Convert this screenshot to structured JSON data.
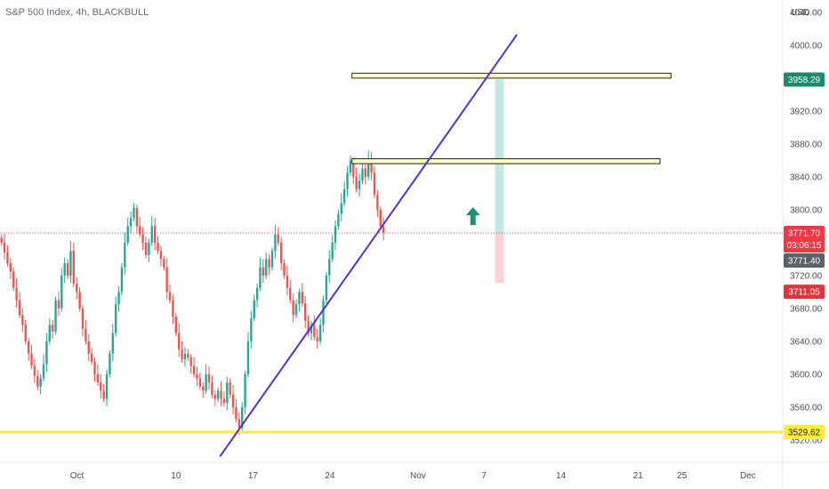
{
  "header": {
    "title": "S&P 500 Index, 4h, BLACKBULL",
    "currency": "USD"
  },
  "colors": {
    "up": "#26a69a",
    "down": "#ef5350",
    "trendline": "#5b2fc9",
    "zone_fill": "#fff9c4",
    "zone_stroke": "#222222",
    "support": "#ffeb3b",
    "target_fill": "#b2dfdb",
    "stop_fill": "#f8c4c8",
    "arrow": "#1e8f6f"
  },
  "chart_data": {
    "type": "candlestick",
    "title": "S&P 500 Index, 4h, BLACKBULL",
    "ylim": [
      3495,
      4055
    ],
    "y_ticks": [
      "3520.00",
      "3560.00",
      "3600.00",
      "3640.00",
      "3680.00",
      "3720.00",
      "3760.00",
      "3800.00",
      "3840.00",
      "3880.00",
      "3920.00",
      "3960.00",
      "4000.00",
      "4040.00"
    ],
    "x_ticks": [
      {
        "label": "Oct",
        "date": "2022-10-01"
      },
      {
        "label": "10",
        "date": "2022-10-10"
      },
      {
        "label": "17",
        "date": "2022-10-17"
      },
      {
        "label": "24",
        "date": "2022-10-24"
      },
      {
        "label": "Nov",
        "date": "2022-11-01"
      },
      {
        "label": "7",
        "date": "2022-11-07"
      },
      {
        "label": "14",
        "date": "2022-11-14"
      },
      {
        "label": "21",
        "date": "2022-11-21"
      },
      {
        "label": "25",
        "date": "2022-11-25"
      },
      {
        "label": "Dec",
        "date": "2022-12-01"
      }
    ],
    "date_range": [
      "2022-09-24",
      "2022-12-04"
    ],
    "closes": [
      3760,
      3748,
      3735,
      3725,
      3705,
      3690,
      3672,
      3660,
      3640,
      3625,
      3610,
      3598,
      3585,
      3595,
      3612,
      3640,
      3660,
      3652,
      3690,
      3680,
      3720,
      3735,
      3720,
      3750,
      3710,
      3700,
      3680,
      3655,
      3640,
      3625,
      3615,
      3600,
      3590,
      3580,
      3570,
      3600,
      3625,
      3650,
      3685,
      3700,
      3730,
      3760,
      3780,
      3790,
      3802,
      3780,
      3770,
      3760,
      3745,
      3760,
      3780,
      3760,
      3750,
      3740,
      3730,
      3700,
      3690,
      3670,
      3650,
      3630,
      3618,
      3625,
      3620,
      3610,
      3600,
      3595,
      3585,
      3580,
      3600,
      3590,
      3575,
      3570,
      3580,
      3570,
      3565,
      3590,
      3575,
      3560,
      3545,
      3535,
      3560,
      3600,
      3640,
      3668,
      3690,
      3705,
      3730,
      3720,
      3740,
      3730,
      3750,
      3770,
      3760,
      3735,
      3720,
      3705,
      3690,
      3672,
      3685,
      3700,
      3686,
      3665,
      3650,
      3660,
      3645,
      3640,
      3660,
      3690,
      3720,
      3740,
      3760,
      3780,
      3795,
      3808,
      3825,
      3845,
      3860,
      3840,
      3825,
      3835,
      3850,
      3840,
      3860,
      3845,
      3818,
      3800,
      3780,
      3772
    ],
    "series_start": "2022-09-24",
    "series_end": "2022-10-29",
    "current_price": "3771.70",
    "countdown": "03:06:15",
    "prev_close": "3771.40",
    "stop_level": "3711.05",
    "target_level": "3958.29",
    "support_level": "3529.62",
    "resistance_zones": [
      {
        "from": 3960,
        "to": 3966,
        "start": "2022-10-26",
        "end": "2022-11-24"
      },
      {
        "from": 3856,
        "to": 3862,
        "start": "2022-10-26",
        "end": "2022-11-23"
      }
    ],
    "trendline": {
      "start_date": "2022-10-14",
      "start_price": 3500,
      "end_date": "2022-11-10",
      "end_price": 4013
    },
    "position": {
      "date_start": "2022-11-08",
      "date_end": "2022-11-08.5",
      "entry": 3771.7,
      "target": 3958.29,
      "stop": 3711.05
    },
    "arrow": {
      "date": "2022-11-06",
      "price": 3790,
      "direction": "up"
    }
  }
}
